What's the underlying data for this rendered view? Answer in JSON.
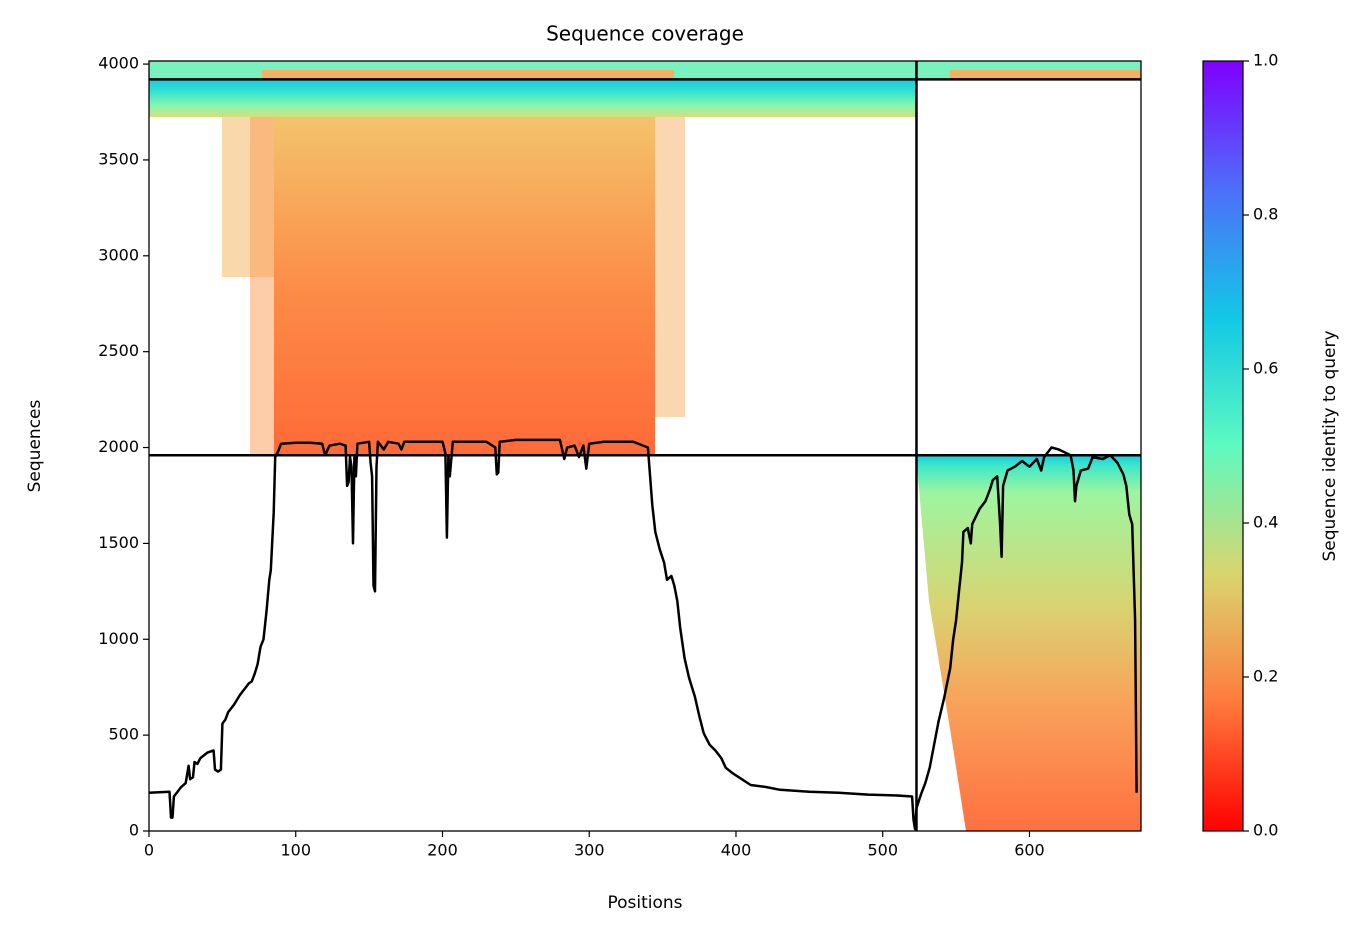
{
  "chart_data": {
    "type": "line",
    "title": "Sequence coverage",
    "x_label": "Positions",
    "y_label": "Sequences",
    "xlim": [
      0,
      676
    ],
    "xticks": [
      0,
      100,
      200,
      300,
      400,
      500,
      600
    ],
    "ylim": [
      0,
      4016
    ],
    "yticks": [
      0,
      500,
      1000,
      1500,
      2000,
      2500,
      3000,
      3500,
      4000
    ],
    "color": "#000000",
    "hlines": [
      1960,
      3920
    ],
    "vlines": [
      523
    ],
    "x": [
      0,
      14,
      15,
      16,
      17,
      22,
      25,
      27,
      28,
      30,
      31,
      33,
      35,
      40,
      44,
      45,
      47,
      49,
      50,
      52,
      54,
      58,
      62,
      66,
      68,
      70,
      72,
      74,
      76,
      78,
      80,
      82,
      83,
      85,
      86,
      88,
      90,
      100,
      110,
      118,
      120,
      123,
      130,
      134,
      135,
      136,
      137,
      138,
      139,
      140,
      141,
      142,
      150,
      151,
      152,
      153,
      154,
      155,
      156,
      160,
      163,
      170,
      172,
      174,
      180,
      190,
      200,
      202,
      203,
      204,
      205,
      207,
      230,
      236,
      237,
      238,
      239,
      250,
      280,
      283,
      285,
      290,
      293,
      296,
      298,
      300,
      310,
      330,
      340,
      343,
      345,
      348,
      351,
      353,
      356,
      358,
      360,
      362,
      365,
      368,
      372,
      375,
      378,
      382,
      386,
      390,
      393,
      398,
      402,
      410,
      420,
      430,
      440,
      450,
      470,
      490,
      510,
      520,
      521,
      522,
      523,
      526,
      529,
      532,
      535,
      538,
      542,
      546,
      548,
      550,
      552,
      554,
      555,
      558,
      560,
      561,
      566,
      570,
      573,
      575,
      578,
      580,
      581,
      582,
      585,
      590,
      595,
      600,
      605,
      608,
      610,
      615,
      620,
      628,
      630,
      631,
      632,
      635,
      640,
      643,
      650,
      655,
      660,
      664,
      666,
      668,
      670,
      672,
      673
    ],
    "values": [
      200,
      205,
      70,
      70,
      180,
      230,
      250,
      340,
      270,
      280,
      360,
      350,
      380,
      410,
      420,
      320,
      310,
      320,
      560,
      580,
      620,
      660,
      710,
      750,
      770,
      780,
      820,
      870,
      960,
      1000,
      1140,
      1310,
      1360,
      1660,
      1950,
      1980,
      2020,
      2025,
      2025,
      2020,
      1960,
      2010,
      2020,
      2010,
      1800,
      1820,
      1950,
      1900,
      1500,
      1950,
      1850,
      2020,
      2030,
      1920,
      1850,
      1280,
      1250,
      1900,
      2030,
      1990,
      2030,
      2020,
      1990,
      2030,
      2030,
      2030,
      2030,
      1970,
      1530,
      1960,
      1850,
      2030,
      2030,
      2000,
      1860,
      1870,
      2030,
      2040,
      2040,
      1940,
      2000,
      2010,
      1950,
      2010,
      1890,
      2020,
      2030,
      2030,
      2000,
      1700,
      1560,
      1470,
      1400,
      1310,
      1330,
      1280,
      1200,
      1060,
      900,
      800,
      700,
      600,
      510,
      450,
      420,
      380,
      330,
      300,
      280,
      240,
      230,
      215,
      210,
      205,
      200,
      190,
      185,
      180,
      60,
      10,
      120,
      190,
      250,
      330,
      450,
      570,
      700,
      850,
      1000,
      1100,
      1250,
      1400,
      1560,
      1580,
      1500,
      1600,
      1680,
      1720,
      1780,
      1830,
      1850,
      1600,
      1430,
      1800,
      1880,
      1900,
      1930,
      1900,
      1940,
      1880,
      1950,
      2000,
      1990,
      1960,
      1880,
      1720,
      1800,
      1880,
      1890,
      1950,
      1940,
      1960,
      1920,
      1860,
      1800,
      1650,
      1600,
      1100,
      200
    ],
    "colorbar": {
      "label": "Sequence identity to query",
      "lim": [
        0,
        1
      ],
      "ticks": [
        {
          "value": 0,
          "label": "0.0"
        },
        0.2,
        0.4,
        0.6,
        0.8,
        {
          "value": 1,
          "label": "1.0"
        }
      ],
      "colors": [
        "#ff0000",
        "#ff7a3c",
        "#d9d56e",
        "#5dfac0",
        "#12c8e6",
        "#4d6ffa",
        "#7f00ff"
      ]
    }
  }
}
